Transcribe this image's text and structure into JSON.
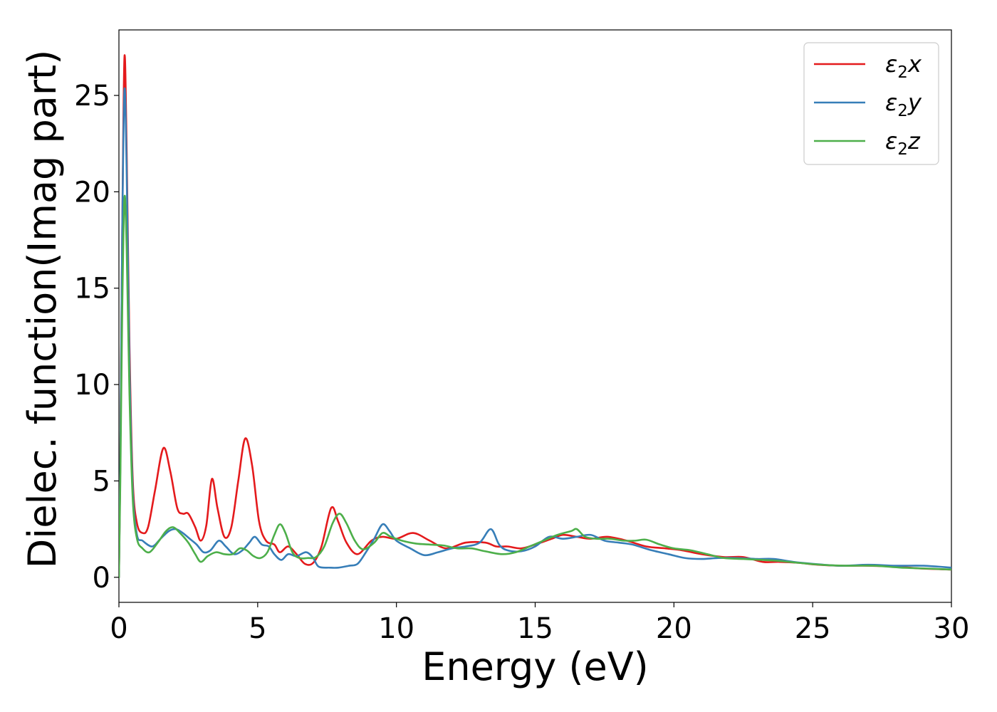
{
  "chart_data": {
    "type": "line",
    "xlabel": "Energy (eV)",
    "ylabel": "Dielec. function(Imag part)",
    "xlim": [
      0,
      30
    ],
    "ylim": [
      -1.3,
      28.4
    ],
    "xticks": [
      0,
      5,
      10,
      15,
      20,
      25,
      30
    ],
    "yticks": [
      0,
      5,
      10,
      15,
      20,
      25
    ],
    "grid": false,
    "legend_position": "top-right",
    "series": [
      {
        "name": "ε2x",
        "color": "#e41a1c",
        "points": [
          [
            0,
            0
          ],
          [
            0.05,
            6
          ],
          [
            0.12,
            18
          ],
          [
            0.2,
            27
          ],
          [
            0.28,
            22
          ],
          [
            0.38,
            12
          ],
          [
            0.5,
            5
          ],
          [
            0.65,
            2.8
          ],
          [
            0.85,
            2.3
          ],
          [
            1.05,
            2.6
          ],
          [
            1.3,
            4.5
          ],
          [
            1.6,
            6.7
          ],
          [
            1.85,
            5.5
          ],
          [
            2.1,
            3.6
          ],
          [
            2.3,
            3.3
          ],
          [
            2.5,
            3.3
          ],
          [
            2.75,
            2.6
          ],
          [
            2.95,
            1.9
          ],
          [
            3.15,
            2.7
          ],
          [
            3.35,
            5.1
          ],
          [
            3.55,
            3.6
          ],
          [
            3.8,
            2.1
          ],
          [
            4.05,
            2.6
          ],
          [
            4.3,
            5.0
          ],
          [
            4.55,
            7.2
          ],
          [
            4.8,
            5.8
          ],
          [
            5.05,
            2.9
          ],
          [
            5.3,
            1.9
          ],
          [
            5.6,
            1.7
          ],
          [
            5.8,
            1.3
          ],
          [
            6.1,
            1.6
          ],
          [
            6.4,
            1.2
          ],
          [
            6.7,
            0.7
          ],
          [
            7.0,
            0.75
          ],
          [
            7.3,
            1.6
          ],
          [
            7.65,
            3.6
          ],
          [
            7.9,
            2.9
          ],
          [
            8.2,
            1.8
          ],
          [
            8.6,
            1.2
          ],
          [
            9.1,
            1.9
          ],
          [
            9.5,
            2.1
          ],
          [
            10.0,
            2.0
          ],
          [
            10.6,
            2.3
          ],
          [
            11.2,
            1.9
          ],
          [
            11.8,
            1.5
          ],
          [
            12.5,
            1.8
          ],
          [
            13.2,
            1.8
          ],
          [
            13.6,
            1.6
          ],
          [
            14.0,
            1.6
          ],
          [
            14.5,
            1.5
          ],
          [
            15.0,
            1.7
          ],
          [
            15.6,
            2.0
          ],
          [
            16.0,
            2.2
          ],
          [
            16.5,
            2.1
          ],
          [
            17.0,
            2.0
          ],
          [
            17.6,
            2.1
          ],
          [
            18.3,
            1.9
          ],
          [
            19.0,
            1.6
          ],
          [
            19.7,
            1.5
          ],
          [
            20.3,
            1.4
          ],
          [
            21.0,
            1.2
          ],
          [
            21.8,
            1.05
          ],
          [
            22.5,
            1.05
          ],
          [
            23.2,
            0.8
          ],
          [
            23.8,
            0.8
          ],
          [
            24.5,
            0.75
          ],
          [
            25.2,
            0.65
          ],
          [
            26.0,
            0.6
          ],
          [
            27.0,
            0.6
          ],
          [
            28.0,
            0.55
          ],
          [
            29.0,
            0.45
          ],
          [
            30.0,
            0.4
          ]
        ]
      },
      {
        "name": "ε2y",
        "color": "#377eb8",
        "points": [
          [
            0,
            0
          ],
          [
            0.05,
            6
          ],
          [
            0.12,
            18
          ],
          [
            0.2,
            25.3
          ],
          [
            0.28,
            21
          ],
          [
            0.38,
            11
          ],
          [
            0.5,
            4.5
          ],
          [
            0.65,
            2.2
          ],
          [
            0.85,
            1.9
          ],
          [
            1.2,
            1.6
          ],
          [
            1.5,
            2.0
          ],
          [
            1.8,
            2.4
          ],
          [
            2.05,
            2.5
          ],
          [
            2.3,
            2.3
          ],
          [
            2.55,
            2.0
          ],
          [
            2.8,
            1.7
          ],
          [
            3.05,
            1.3
          ],
          [
            3.3,
            1.4
          ],
          [
            3.6,
            1.9
          ],
          [
            3.85,
            1.6
          ],
          [
            4.15,
            1.2
          ],
          [
            4.45,
            1.4
          ],
          [
            4.7,
            1.8
          ],
          [
            4.9,
            2.1
          ],
          [
            5.15,
            1.7
          ],
          [
            5.4,
            1.6
          ],
          [
            5.6,
            1.2
          ],
          [
            5.85,
            0.9
          ],
          [
            6.1,
            1.2
          ],
          [
            6.4,
            1.1
          ],
          [
            6.75,
            1.3
          ],
          [
            7.0,
            1.0
          ],
          [
            7.2,
            0.55
          ],
          [
            7.6,
            0.5
          ],
          [
            7.9,
            0.5
          ],
          [
            8.3,
            0.6
          ],
          [
            8.6,
            0.7
          ],
          [
            8.9,
            1.3
          ],
          [
            9.2,
            2.0
          ],
          [
            9.5,
            2.75
          ],
          [
            9.75,
            2.4
          ],
          [
            10.0,
            1.9
          ],
          [
            10.5,
            1.5
          ],
          [
            11.0,
            1.15
          ],
          [
            11.5,
            1.3
          ],
          [
            12.0,
            1.5
          ],
          [
            12.5,
            1.6
          ],
          [
            13.0,
            1.8
          ],
          [
            13.4,
            2.5
          ],
          [
            13.7,
            1.7
          ],
          [
            14.0,
            1.4
          ],
          [
            14.5,
            1.35
          ],
          [
            15.0,
            1.6
          ],
          [
            15.5,
            2.1
          ],
          [
            16.0,
            2.0
          ],
          [
            16.5,
            2.1
          ],
          [
            17.0,
            2.2
          ],
          [
            17.5,
            1.9
          ],
          [
            18.0,
            1.8
          ],
          [
            18.5,
            1.7
          ],
          [
            19.2,
            1.4
          ],
          [
            19.8,
            1.2
          ],
          [
            20.4,
            1.0
          ],
          [
            21.0,
            0.95
          ],
          [
            21.6,
            1.0
          ],
          [
            22.3,
            1.0
          ],
          [
            23.0,
            0.95
          ],
          [
            23.6,
            0.95
          ],
          [
            24.3,
            0.8
          ],
          [
            25.0,
            0.7
          ],
          [
            26.0,
            0.6
          ],
          [
            27.0,
            0.65
          ],
          [
            28.0,
            0.6
          ],
          [
            29.0,
            0.6
          ],
          [
            30.0,
            0.5
          ]
        ]
      },
      {
        "name": "ε2z",
        "color": "#4daf4a",
        "points": [
          [
            0,
            0
          ],
          [
            0.05,
            5
          ],
          [
            0.12,
            14
          ],
          [
            0.2,
            19.7
          ],
          [
            0.28,
            17
          ],
          [
            0.38,
            9.5
          ],
          [
            0.5,
            4.0
          ],
          [
            0.65,
            2.0
          ],
          [
            0.85,
            1.5
          ],
          [
            1.1,
            1.3
          ],
          [
            1.4,
            1.8
          ],
          [
            1.7,
            2.4
          ],
          [
            1.95,
            2.6
          ],
          [
            2.2,
            2.3
          ],
          [
            2.5,
            1.8
          ],
          [
            2.75,
            1.2
          ],
          [
            2.95,
            0.8
          ],
          [
            3.2,
            1.1
          ],
          [
            3.5,
            1.3
          ],
          [
            3.8,
            1.2
          ],
          [
            4.1,
            1.2
          ],
          [
            4.35,
            1.5
          ],
          [
            4.6,
            1.4
          ],
          [
            4.85,
            1.1
          ],
          [
            5.1,
            1.0
          ],
          [
            5.35,
            1.3
          ],
          [
            5.6,
            2.2
          ],
          [
            5.8,
            2.75
          ],
          [
            6.0,
            2.3
          ],
          [
            6.25,
            1.3
          ],
          [
            6.5,
            1.0
          ],
          [
            6.8,
            1.0
          ],
          [
            7.1,
            1.05
          ],
          [
            7.4,
            1.6
          ],
          [
            7.7,
            2.8
          ],
          [
            7.95,
            3.3
          ],
          [
            8.2,
            2.8
          ],
          [
            8.5,
            1.9
          ],
          [
            8.8,
            1.45
          ],
          [
            9.2,
            1.8
          ],
          [
            9.5,
            2.3
          ],
          [
            9.8,
            2.1
          ],
          [
            10.2,
            1.9
          ],
          [
            10.7,
            1.75
          ],
          [
            11.2,
            1.7
          ],
          [
            11.7,
            1.65
          ],
          [
            12.2,
            1.5
          ],
          [
            12.7,
            1.5
          ],
          [
            13.2,
            1.35
          ],
          [
            13.8,
            1.2
          ],
          [
            14.3,
            1.3
          ],
          [
            14.8,
            1.6
          ],
          [
            15.3,
            1.9
          ],
          [
            15.8,
            2.2
          ],
          [
            16.3,
            2.4
          ],
          [
            16.5,
            2.5
          ],
          [
            16.8,
            2.1
          ],
          [
            17.2,
            2.0
          ],
          [
            17.7,
            2.0
          ],
          [
            18.2,
            1.9
          ],
          [
            18.6,
            1.9
          ],
          [
            19.0,
            1.95
          ],
          [
            19.5,
            1.7
          ],
          [
            20.0,
            1.5
          ],
          [
            20.6,
            1.4
          ],
          [
            21.2,
            1.2
          ],
          [
            21.8,
            1.0
          ],
          [
            22.5,
            0.95
          ],
          [
            23.2,
            0.9
          ],
          [
            23.8,
            0.85
          ],
          [
            24.5,
            0.75
          ],
          [
            25.3,
            0.65
          ],
          [
            26.2,
            0.6
          ],
          [
            27.2,
            0.6
          ],
          [
            28.2,
            0.5
          ],
          [
            29.2,
            0.45
          ],
          [
            30.0,
            0.4
          ]
        ]
      }
    ]
  }
}
